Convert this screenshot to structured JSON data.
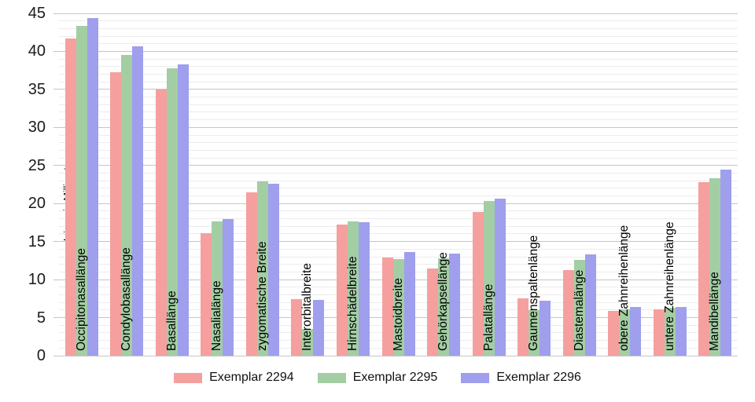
{
  "chart_data": {
    "type": "bar",
    "title": "",
    "ylabel": "Länge in Millimetern",
    "xlabel": "",
    "ylim": [
      0,
      45
    ],
    "ytick_major_step": 5,
    "ytick_minor_step": 1,
    "grid": "horizontal, minor every 1, major every 5",
    "legend_position": "bottom",
    "background": "#ffffff",
    "categories": [
      "Occipitonasallänge",
      "Condylobasallänge",
      "Basallänge",
      "Nasalialänge",
      "zygomatische Breite",
      "Interorbitalbreite",
      "Hirnschädelbreite",
      "Mastoidbreite",
      "Gehörkapsellänge",
      "Palatallänge",
      "Gaumenspaltenlänge",
      "Diastemalänge",
      "obere Zahnreihenlänge",
      "untere Zahnreihenlänge",
      "Mandibellänge"
    ],
    "series": [
      {
        "name": "Exemplar 2294",
        "color": "#f59f9f",
        "values": [
          41.7,
          37.3,
          35.0,
          16.1,
          21.5,
          7.4,
          17.2,
          12.9,
          11.5,
          18.9,
          7.5,
          11.3,
          5.9,
          6.1,
          22.8
        ]
      },
      {
        "name": "Exemplar 2295",
        "color": "#a3cea3",
        "values": [
          43.4,
          39.5,
          37.8,
          17.6,
          22.9,
          3.5,
          17.7,
          12.7,
          12.8,
          20.3,
          6.0,
          12.6,
          6.1,
          6.3,
          23.3
        ]
      },
      {
        "name": "Exemplar 2296",
        "color": "#9f9fed",
        "values": [
          44.4,
          40.7,
          38.3,
          18.0,
          22.6,
          7.3,
          17.5,
          13.6,
          13.4,
          20.6,
          7.2,
          13.3,
          6.4,
          6.4,
          24.5
        ]
      }
    ]
  }
}
